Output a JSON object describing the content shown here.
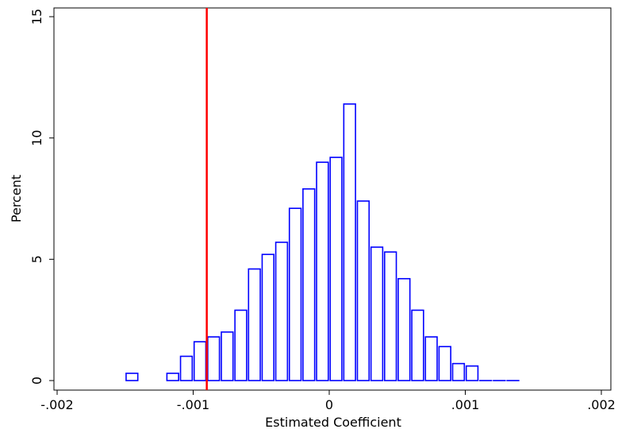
{
  "chart_data": {
    "type": "bar",
    "title": "",
    "xlabel": "Estimated Coefficient",
    "ylabel": "Percent",
    "xlim": [
      -0.002,
      0.002
    ],
    "ylim": [
      0,
      15
    ],
    "x_ticks": [
      {
        "value": -0.002,
        "label": "-.002"
      },
      {
        "value": -0.001,
        "label": "-.001"
      },
      {
        "value": 0,
        "label": "0"
      },
      {
        "value": 0.001,
        "label": ".001"
      },
      {
        "value": 0.002,
        "label": ".002"
      }
    ],
    "y_ticks": [
      {
        "value": 0,
        "label": "0"
      },
      {
        "value": 5,
        "label": "5"
      },
      {
        "value": 10,
        "label": "10"
      },
      {
        "value": 15,
        "label": "15"
      }
    ],
    "bin_width": 0.0001,
    "bar_color": "#0000ff",
    "reference_line": {
      "x": -0.0009,
      "color": "#ff0000"
    },
    "grid": false,
    "bins": [
      {
        "x": -0.00145,
        "value": 0.3
      },
      {
        "x": -0.00115,
        "value": 0.3
      },
      {
        "x": -0.00105,
        "value": 1.0
      },
      {
        "x": -0.00095,
        "value": 1.6
      },
      {
        "x": -0.00085,
        "value": 1.8
      },
      {
        "x": -0.00075,
        "value": 2.0
      },
      {
        "x": -0.00065,
        "value": 2.9
      },
      {
        "x": -0.00055,
        "value": 4.6
      },
      {
        "x": -0.00045,
        "value": 5.2
      },
      {
        "x": -0.00035,
        "value": 5.7
      },
      {
        "x": -0.00025,
        "value": 7.1
      },
      {
        "x": -0.00015,
        "value": 7.9
      },
      {
        "x": -5e-05,
        "value": 9.0
      },
      {
        "x": 5e-05,
        "value": 9.2
      },
      {
        "x": 0.00015,
        "value": 11.4
      },
      {
        "x": 0.00025,
        "value": 7.4
      },
      {
        "x": 0.00035,
        "value": 5.5
      },
      {
        "x": 0.00045,
        "value": 5.3
      },
      {
        "x": 0.00055,
        "value": 4.2
      },
      {
        "x": 0.00065,
        "value": 2.9
      },
      {
        "x": 0.00075,
        "value": 1.8
      },
      {
        "x": 0.00085,
        "value": 1.4
      },
      {
        "x": 0.00095,
        "value": 0.7
      },
      {
        "x": 0.00105,
        "value": 0.6
      },
      {
        "x": 0.00115,
        "value": 0.0
      },
      {
        "x": 0.00125,
        "value": 0.0
      },
      {
        "x": 0.00135,
        "value": 0.0
      }
    ]
  }
}
